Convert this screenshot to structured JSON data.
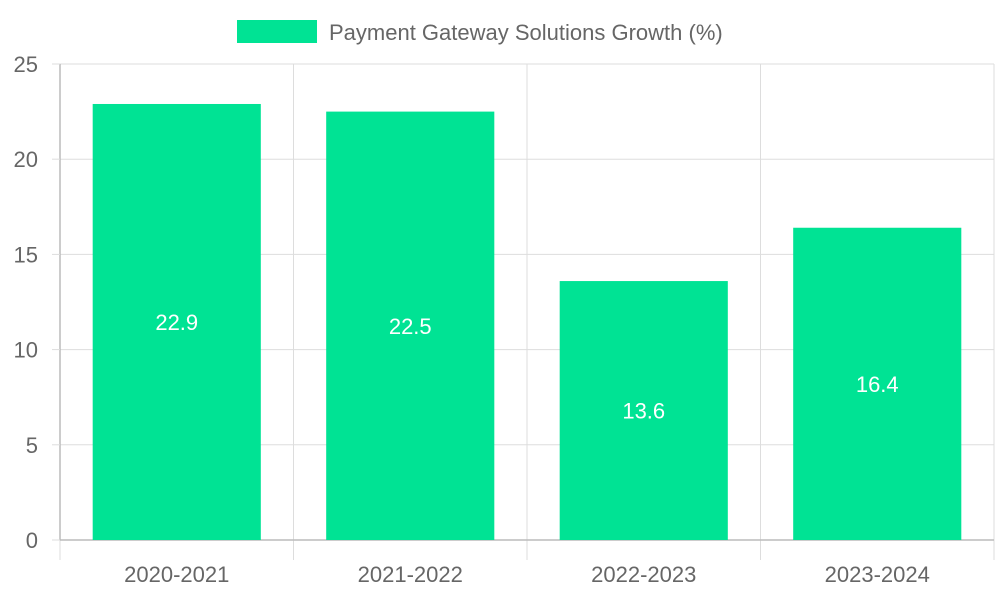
{
  "chart_data": {
    "type": "bar",
    "categories": [
      "2020-2021",
      "2021-2022",
      "2022-2023",
      "2023-2024"
    ],
    "series": [
      {
        "name": "Payment Gateway Solutions Growth (%)",
        "values": [
          22.9,
          22.5,
          13.6,
          16.4
        ],
        "color": "#00E394"
      }
    ],
    "data_labels": [
      "22.9",
      "22.5",
      "13.6",
      "16.4"
    ],
    "y_ticks": [
      "0",
      "5",
      "10",
      "15",
      "20",
      "25"
    ],
    "ylim": [
      0,
      25
    ],
    "grid": true,
    "legend_position": "top-center",
    "colors": {
      "grid": "#dddddd",
      "axis": "#bbbbbb",
      "text": "#666666",
      "label": "#ffffff"
    }
  }
}
